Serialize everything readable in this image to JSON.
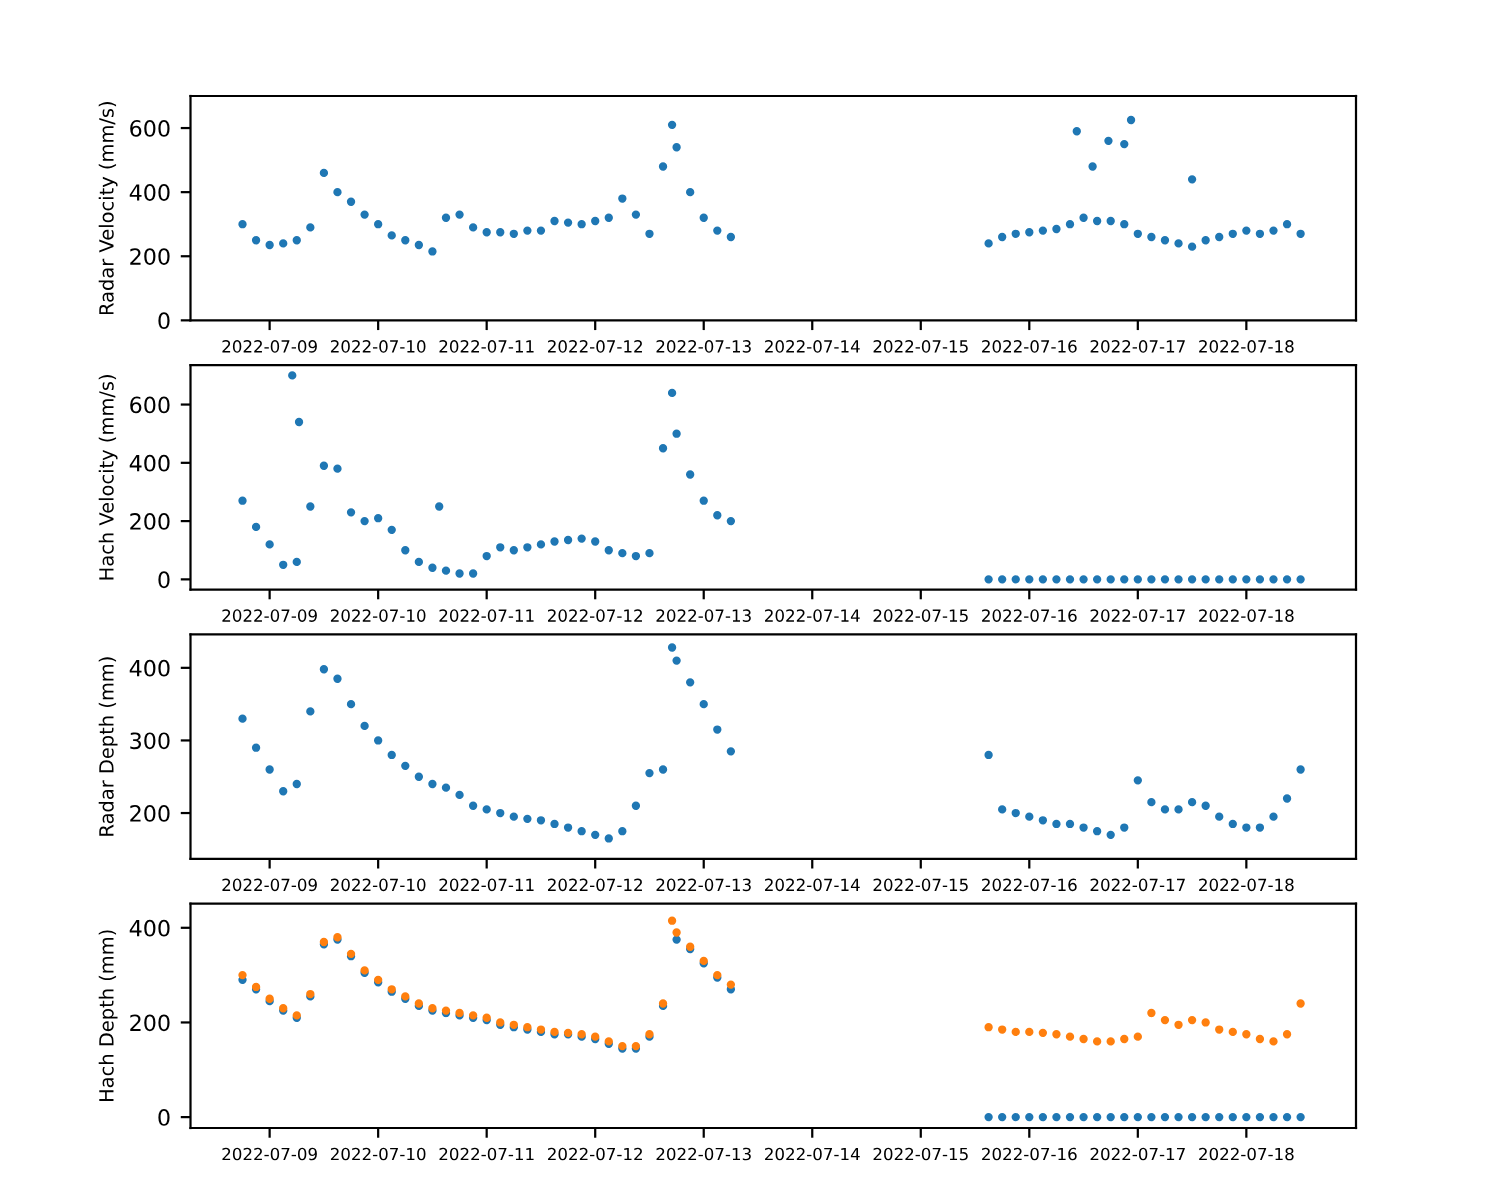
{
  "chart_data": [
    {
      "type": "scatter",
      "ylabel": "Radar Velocity (mm/s)",
      "marker": "circle",
      "grid": false,
      "x": [
        "2022-07-08T18:00",
        "2022-07-08T21:00",
        "2022-07-09T00:00",
        "2022-07-09T03:00",
        "2022-07-09T06:00",
        "2022-07-09T09:00",
        "2022-07-09T12:00",
        "2022-07-09T15:00",
        "2022-07-09T18:00",
        "2022-07-09T21:00",
        "2022-07-10T00:00",
        "2022-07-10T03:00",
        "2022-07-10T06:00",
        "2022-07-10T09:00",
        "2022-07-10T12:00",
        "2022-07-10T15:00",
        "2022-07-10T18:00",
        "2022-07-10T21:00",
        "2022-07-11T00:00",
        "2022-07-11T03:00",
        "2022-07-11T06:00",
        "2022-07-11T09:00",
        "2022-07-11T12:00",
        "2022-07-11T15:00",
        "2022-07-11T18:00",
        "2022-07-11T21:00",
        "2022-07-12T00:00",
        "2022-07-12T03:00",
        "2022-07-12T06:00",
        "2022-07-12T09:00",
        "2022-07-12T12:00",
        "2022-07-12T15:00",
        "2022-07-12T18:00",
        "2022-07-12T21:00",
        "2022-07-13T00:00",
        "2022-07-13T03:00",
        "2022-07-13T06:00",
        "2022-07-15T15:00",
        "2022-07-15T18:00",
        "2022-07-15T21:00",
        "2022-07-16T00:00",
        "2022-07-16T03:00",
        "2022-07-16T06:00",
        "2022-07-16T09:00",
        "2022-07-16T12:00",
        "2022-07-16T15:00",
        "2022-07-16T18:00",
        "2022-07-16T21:00",
        "2022-07-17T00:00",
        "2022-07-17T03:00",
        "2022-07-17T06:00",
        "2022-07-17T09:00",
        "2022-07-17T12:00",
        "2022-07-17T15:00",
        "2022-07-17T18:00",
        "2022-07-17T21:00",
        "2022-07-18T00:00",
        "2022-07-18T03:00",
        "2022-07-18T06:00",
        "2022-07-18T09:00",
        "2022-07-18T12:00"
      ],
      "series": [
        {
          "color": "#1f77b4",
          "values": [
            300,
            250,
            235,
            240,
            250,
            290,
            460,
            400,
            370,
            330,
            300,
            265,
            250,
            235,
            215,
            320,
            330,
            290,
            275,
            275,
            270,
            280,
            280,
            310,
            305,
            300,
            310,
            320,
            380,
            330,
            270,
            480,
            540,
            400,
            320,
            280,
            260,
            240,
            260,
            270,
            275,
            280,
            285,
            300,
            320,
            310,
            310,
            300,
            270,
            260,
            250,
            240,
            230,
            250,
            260,
            270,
            280,
            270,
            280,
            300,
            270
          ]
        },
        {
          "color": "#1f77b4",
          "x": [
            "2022-07-12T17:00",
            "2022-07-16T10:30",
            "2022-07-16T14:00",
            "2022-07-16T17:30",
            "2022-07-16T21:00",
            "2022-07-16T22:30",
            "2022-07-17T12:00"
          ],
          "values": [
            610,
            590,
            480,
            560,
            550,
            625,
            440
          ]
        }
      ],
      "xlim": [
        "2022-07-08T06:30",
        "2022-07-19T00:15"
      ],
      "xticks": [
        "2022-07-09",
        "2022-07-10",
        "2022-07-11",
        "2022-07-12",
        "2022-07-13",
        "2022-07-14",
        "2022-07-15",
        "2022-07-16",
        "2022-07-17",
        "2022-07-18"
      ],
      "ylim": [
        0,
        700
      ],
      "yticks": [
        0,
        200,
        400,
        600
      ]
    },
    {
      "type": "scatter",
      "ylabel": "Hach Velocity (mm/s)",
      "marker": "circle",
      "grid": false,
      "x": [
        "2022-07-08T18:00",
        "2022-07-08T21:00",
        "2022-07-09T00:00",
        "2022-07-09T03:00",
        "2022-07-09T06:00",
        "2022-07-09T09:00",
        "2022-07-09T12:00",
        "2022-07-09T15:00",
        "2022-07-09T18:00",
        "2022-07-09T21:00",
        "2022-07-10T00:00",
        "2022-07-10T03:00",
        "2022-07-10T06:00",
        "2022-07-10T09:00",
        "2022-07-10T12:00",
        "2022-07-10T15:00",
        "2022-07-10T18:00",
        "2022-07-10T21:00",
        "2022-07-11T00:00",
        "2022-07-11T03:00",
        "2022-07-11T06:00",
        "2022-07-11T09:00",
        "2022-07-11T12:00",
        "2022-07-11T15:00",
        "2022-07-11T18:00",
        "2022-07-11T21:00",
        "2022-07-12T00:00",
        "2022-07-12T03:00",
        "2022-07-12T06:00",
        "2022-07-12T09:00",
        "2022-07-12T12:00",
        "2022-07-12T15:00",
        "2022-07-12T18:00",
        "2022-07-12T21:00",
        "2022-07-13T00:00",
        "2022-07-13T03:00",
        "2022-07-13T06:00",
        "2022-07-15T15:00",
        "2022-07-15T18:00",
        "2022-07-15T21:00",
        "2022-07-16T00:00",
        "2022-07-16T03:00",
        "2022-07-16T06:00",
        "2022-07-16T09:00",
        "2022-07-16T12:00",
        "2022-07-16T15:00",
        "2022-07-16T18:00",
        "2022-07-16T21:00",
        "2022-07-17T00:00",
        "2022-07-17T03:00",
        "2022-07-17T06:00",
        "2022-07-17T09:00",
        "2022-07-17T12:00",
        "2022-07-17T15:00",
        "2022-07-17T18:00",
        "2022-07-17T21:00",
        "2022-07-18T00:00",
        "2022-07-18T03:00",
        "2022-07-18T06:00",
        "2022-07-18T09:00",
        "2022-07-18T12:00"
      ],
      "series": [
        {
          "color": "#1f77b4",
          "values": [
            270,
            180,
            120,
            50,
            60,
            250,
            390,
            380,
            230,
            200,
            210,
            170,
            100,
            60,
            40,
            30,
            20,
            20,
            80,
            110,
            100,
            110,
            120,
            130,
            135,
            140,
            130,
            100,
            90,
            80,
            90,
            450,
            500,
            360,
            270,
            220,
            200,
            0,
            0,
            0,
            0,
            0,
            0,
            0,
            0,
            0,
            0,
            0,
            0,
            0,
            0,
            0,
            0,
            0,
            0,
            0,
            0,
            0,
            0,
            0,
            0
          ]
        },
        {
          "color": "#1f77b4",
          "x": [
            "2022-07-09T05:00",
            "2022-07-09T06:30",
            "2022-07-10T13:30",
            "2022-07-12T17:00"
          ],
          "values": [
            700,
            540,
            250,
            640
          ]
        }
      ],
      "xlim": [
        "2022-07-08T06:30",
        "2022-07-19T00:15"
      ],
      "xticks": [
        "2022-07-09",
        "2022-07-10",
        "2022-07-11",
        "2022-07-12",
        "2022-07-13",
        "2022-07-14",
        "2022-07-15",
        "2022-07-16",
        "2022-07-17",
        "2022-07-18"
      ],
      "ylim": [
        -35,
        735
      ],
      "yticks": [
        0,
        200,
        400,
        600
      ]
    },
    {
      "type": "scatter",
      "ylabel": "Radar Depth (mm)",
      "marker": "circle",
      "grid": false,
      "x": [
        "2022-07-08T18:00",
        "2022-07-08T21:00",
        "2022-07-09T00:00",
        "2022-07-09T03:00",
        "2022-07-09T06:00",
        "2022-07-09T09:00",
        "2022-07-09T12:00",
        "2022-07-09T15:00",
        "2022-07-09T18:00",
        "2022-07-09T21:00",
        "2022-07-10T00:00",
        "2022-07-10T03:00",
        "2022-07-10T06:00",
        "2022-07-10T09:00",
        "2022-07-10T12:00",
        "2022-07-10T15:00",
        "2022-07-10T18:00",
        "2022-07-10T21:00",
        "2022-07-11T00:00",
        "2022-07-11T03:00",
        "2022-07-11T06:00",
        "2022-07-11T09:00",
        "2022-07-11T12:00",
        "2022-07-11T15:00",
        "2022-07-11T18:00",
        "2022-07-11T21:00",
        "2022-07-12T00:00",
        "2022-07-12T03:00",
        "2022-07-12T06:00",
        "2022-07-12T09:00",
        "2022-07-12T12:00",
        "2022-07-12T15:00",
        "2022-07-12T18:00",
        "2022-07-12T21:00",
        "2022-07-13T00:00",
        "2022-07-13T03:00",
        "2022-07-13T06:00",
        "2022-07-15T15:00",
        "2022-07-15T18:00",
        "2022-07-15T21:00",
        "2022-07-16T00:00",
        "2022-07-16T03:00",
        "2022-07-16T06:00",
        "2022-07-16T09:00",
        "2022-07-16T12:00",
        "2022-07-16T15:00",
        "2022-07-16T18:00",
        "2022-07-16T21:00",
        "2022-07-17T00:00",
        "2022-07-17T03:00",
        "2022-07-17T06:00",
        "2022-07-17T09:00",
        "2022-07-17T12:00",
        "2022-07-17T15:00",
        "2022-07-17T18:00",
        "2022-07-17T21:00",
        "2022-07-18T00:00",
        "2022-07-18T03:00",
        "2022-07-18T06:00",
        "2022-07-18T09:00",
        "2022-07-18T12:00"
      ],
      "series": [
        {
          "color": "#1f77b4",
          "values": [
            330,
            290,
            260,
            230,
            240,
            340,
            398,
            385,
            350,
            320,
            300,
            280,
            265,
            250,
            240,
            235,
            225,
            210,
            205,
            200,
            195,
            192,
            190,
            185,
            180,
            175,
            170,
            165,
            175,
            210,
            255,
            260,
            410,
            380,
            350,
            315,
            285,
            280,
            205,
            200,
            195,
            190,
            185,
            185,
            180,
            175,
            170,
            180,
            245,
            215,
            205,
            205,
            215,
            210,
            195,
            185,
            180,
            180,
            195,
            220,
            260
          ]
        },
        {
          "color": "#1f77b4",
          "x": [
            "2022-07-12T17:00"
          ],
          "values": [
            428
          ]
        }
      ],
      "xlim": [
        "2022-07-08T06:30",
        "2022-07-19T00:15"
      ],
      "xticks": [
        "2022-07-09",
        "2022-07-10",
        "2022-07-11",
        "2022-07-12",
        "2022-07-13",
        "2022-07-14",
        "2022-07-15",
        "2022-07-16",
        "2022-07-17",
        "2022-07-18"
      ],
      "ylim": [
        137,
        446
      ],
      "yticks": [
        200,
        300,
        400
      ]
    },
    {
      "type": "scatter",
      "ylabel": "Hach Depth (mm)",
      "marker": "circle",
      "grid": false,
      "x": [
        "2022-07-08T18:00",
        "2022-07-08T21:00",
        "2022-07-09T00:00",
        "2022-07-09T03:00",
        "2022-07-09T06:00",
        "2022-07-09T09:00",
        "2022-07-09T12:00",
        "2022-07-09T15:00",
        "2022-07-09T18:00",
        "2022-07-09T21:00",
        "2022-07-10T00:00",
        "2022-07-10T03:00",
        "2022-07-10T06:00",
        "2022-07-10T09:00",
        "2022-07-10T12:00",
        "2022-07-10T15:00",
        "2022-07-10T18:00",
        "2022-07-10T21:00",
        "2022-07-11T00:00",
        "2022-07-11T03:00",
        "2022-07-11T06:00",
        "2022-07-11T09:00",
        "2022-07-11T12:00",
        "2022-07-11T15:00",
        "2022-07-11T18:00",
        "2022-07-11T21:00",
        "2022-07-12T00:00",
        "2022-07-12T03:00",
        "2022-07-12T06:00",
        "2022-07-12T09:00",
        "2022-07-12T12:00",
        "2022-07-12T15:00",
        "2022-07-12T18:00",
        "2022-07-12T21:00",
        "2022-07-13T00:00",
        "2022-07-13T03:00",
        "2022-07-13T06:00",
        "2022-07-15T15:00",
        "2022-07-15T18:00",
        "2022-07-15T21:00",
        "2022-07-16T00:00",
        "2022-07-16T03:00",
        "2022-07-16T06:00",
        "2022-07-16T09:00",
        "2022-07-16T12:00",
        "2022-07-16T15:00",
        "2022-07-16T18:00",
        "2022-07-16T21:00",
        "2022-07-17T00:00",
        "2022-07-17T03:00",
        "2022-07-17T06:00",
        "2022-07-17T09:00",
        "2022-07-17T12:00",
        "2022-07-17T15:00",
        "2022-07-17T18:00",
        "2022-07-17T21:00",
        "2022-07-18T00:00",
        "2022-07-18T03:00",
        "2022-07-18T06:00",
        "2022-07-18T09:00",
        "2022-07-18T12:00"
      ],
      "series": [
        {
          "color": "#1f77b4",
          "values": [
            290,
            270,
            245,
            225,
            210,
            255,
            365,
            375,
            340,
            305,
            285,
            265,
            250,
            235,
            225,
            220,
            215,
            210,
            205,
            195,
            190,
            185,
            180,
            175,
            175,
            170,
            165,
            155,
            145,
            145,
            170,
            235,
            375,
            355,
            325,
            295,
            270,
            0,
            0,
            0,
            0,
            0,
            0,
            0,
            0,
            0,
            0,
            0,
            0,
            0,
            0,
            0,
            0,
            0,
            0,
            0,
            0,
            0,
            0,
            0,
            0
          ]
        },
        {
          "color": "#ff7f0e",
          "values": [
            300,
            275,
            250,
            230,
            215,
            260,
            370,
            380,
            345,
            310,
            290,
            270,
            255,
            240,
            230,
            225,
            220,
            215,
            210,
            200,
            195,
            190,
            185,
            180,
            178,
            175,
            170,
            160,
            150,
            150,
            175,
            240,
            390,
            360,
            330,
            300,
            280,
            190,
            185,
            180,
            180,
            178,
            175,
            170,
            165,
            160,
            160,
            165,
            170,
            220,
            205,
            195,
            205,
            200,
            185,
            180,
            175,
            165,
            160,
            175,
            240
          ]
        },
        {
          "color": "#ff7f0e",
          "x": [
            "2022-07-12T17:00"
          ],
          "values": [
            415
          ]
        }
      ],
      "xlim": [
        "2022-07-08T06:30",
        "2022-07-19T00:15"
      ],
      "xticks": [
        "2022-07-09",
        "2022-07-10",
        "2022-07-11",
        "2022-07-12",
        "2022-07-13",
        "2022-07-14",
        "2022-07-15",
        "2022-07-16",
        "2022-07-17",
        "2022-07-18"
      ],
      "ylim": [
        -23,
        451
      ],
      "yticks": [
        0,
        200,
        400
      ]
    }
  ]
}
